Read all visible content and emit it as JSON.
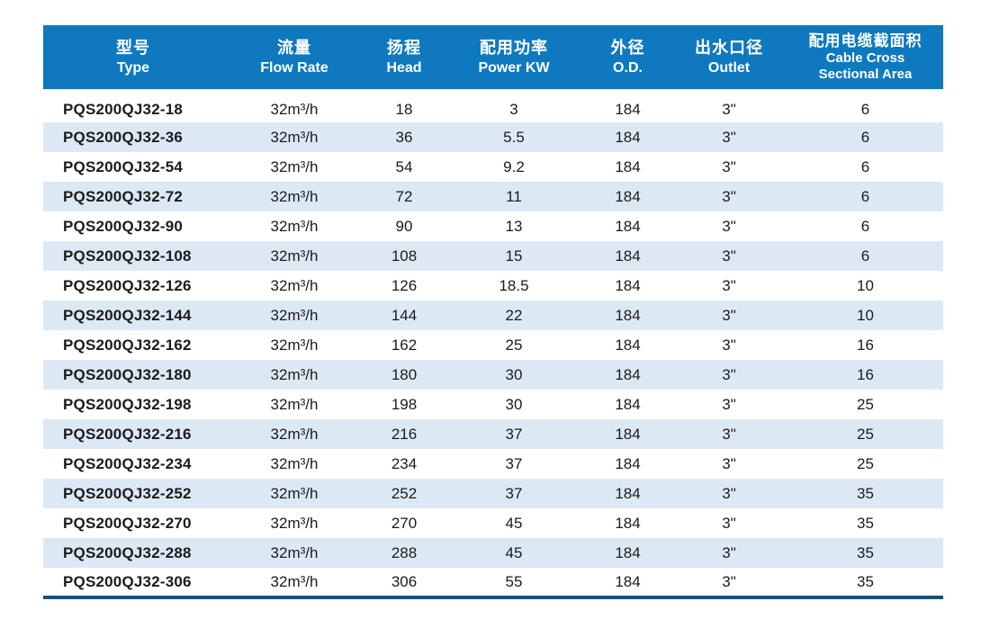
{
  "table": {
    "columns": [
      {
        "zh": "型号",
        "en": "Type"
      },
      {
        "zh": "流量",
        "en": "Flow Rate"
      },
      {
        "zh": "扬程",
        "en": "Head"
      },
      {
        "zh": "配用功率",
        "en": "Power KW"
      },
      {
        "zh": "外径",
        "en": "O.D."
      },
      {
        "zh": "出水口径",
        "en": "Outlet"
      },
      {
        "zh": "配用电缆截面积",
        "en_line1": "Cable Cross",
        "en_line2": "Sectional Area"
      }
    ],
    "rows": [
      [
        "PQS200QJ32-18",
        "32m³/h",
        "18",
        "3",
        "184",
        "3\"",
        "6"
      ],
      [
        "PQS200QJ32-36",
        "32m³/h",
        "36",
        "5.5",
        "184",
        "3\"",
        "6"
      ],
      [
        "PQS200QJ32-54",
        "32m³/h",
        "54",
        "9.2",
        "184",
        "3\"",
        "6"
      ],
      [
        "PQS200QJ32-72",
        "32m³/h",
        "72",
        "11",
        "184",
        "3\"",
        "6"
      ],
      [
        "PQS200QJ32-90",
        "32m³/h",
        "90",
        "13",
        "184",
        "3\"",
        "6"
      ],
      [
        "PQS200QJ32-108",
        "32m³/h",
        "108",
        "15",
        "184",
        "3\"",
        "6"
      ],
      [
        "PQS200QJ32-126",
        "32m³/h",
        "126",
        "18.5",
        "184",
        "3\"",
        "10"
      ],
      [
        "PQS200QJ32-144",
        "32m³/h",
        "144",
        "22",
        "184",
        "3\"",
        "10"
      ],
      [
        "PQS200QJ32-162",
        "32m³/h",
        "162",
        "25",
        "184",
        "3\"",
        "16"
      ],
      [
        "PQS200QJ32-180",
        "32m³/h",
        "180",
        "30",
        "184",
        "3\"",
        "16"
      ],
      [
        "PQS200QJ32-198",
        "32m³/h",
        "198",
        "30",
        "184",
        "3\"",
        "25"
      ],
      [
        "PQS200QJ32-216",
        "32m³/h",
        "216",
        "37",
        "184",
        "3\"",
        "25"
      ],
      [
        "PQS200QJ32-234",
        "32m³/h",
        "234",
        "37",
        "184",
        "3\"",
        "25"
      ],
      [
        "PQS200QJ32-252",
        "32m³/h",
        "252",
        "37",
        "184",
        "3\"",
        "35"
      ],
      [
        "PQS200QJ32-270",
        "32m³/h",
        "270",
        "45",
        "184",
        "3\"",
        "35"
      ],
      [
        "PQS200QJ32-288",
        "32m³/h",
        "288",
        "45",
        "184",
        "3\"",
        "35"
      ],
      [
        "PQS200QJ32-306",
        "32m³/h",
        "306",
        "55",
        "184",
        "3\"",
        "35"
      ]
    ]
  },
  "colors": {
    "header_bg": "#0E79BF",
    "header_text": "#FFFFFF",
    "row_alt_bg": "#DCE9F5",
    "bottom_border": "#17527D",
    "body_text": "#1B1B1B"
  }
}
